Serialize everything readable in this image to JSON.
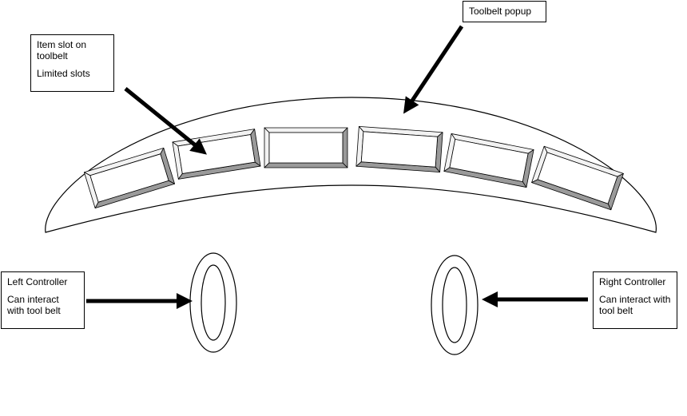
{
  "callouts": {
    "toolbelt_popup": {
      "title": "Toolbelt popup"
    },
    "item_slot": {
      "title": "Item slot on toolbelt",
      "note": "Limited slots"
    },
    "left_controller": {
      "title": "Left Controller",
      "note": "Can interact with tool belt"
    },
    "right_controller": {
      "title": "Right Controller",
      "note": "Can interact with tool belt"
    }
  },
  "toolbelt": {
    "slot_count": 6
  },
  "colors": {
    "line": "#000000",
    "bevel_dark": "#9a9a9a",
    "bevel_light": "#f2f2f2",
    "background": "#ffffff"
  }
}
